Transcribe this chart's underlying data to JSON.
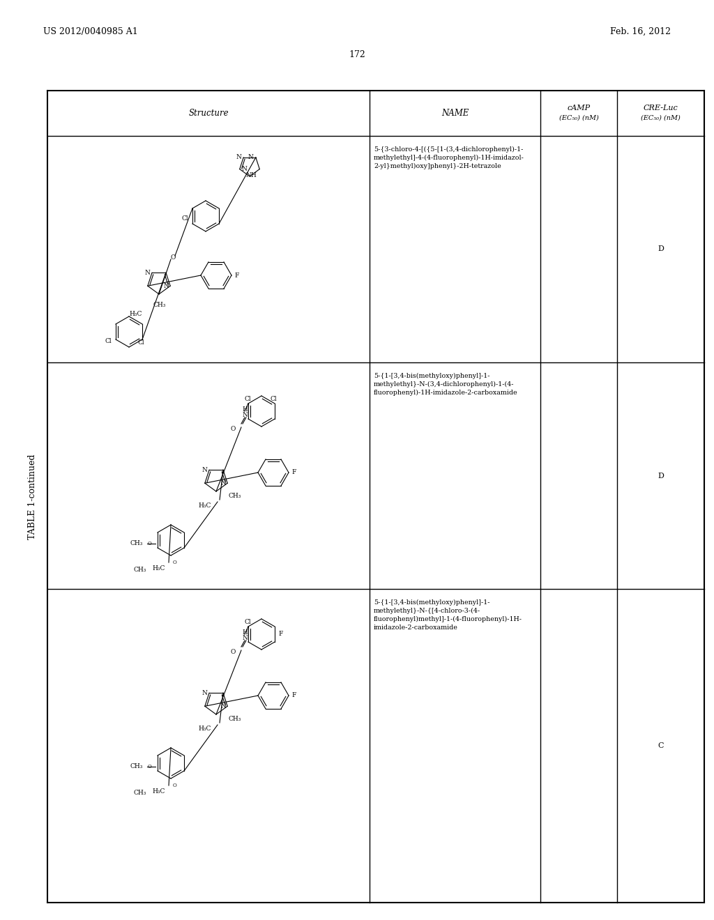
{
  "page_header_left": "US 2012/0040985 A1",
  "page_header_right": "Feb. 16, 2012",
  "page_number": "172",
  "table_title": "TABLE 1-continued",
  "col_structure": "Structure",
  "col_name": "NAME",
  "col_camp": "cAMP",
  "col_camp2": "(EC₅₀) (nM)",
  "col_cre": "CRE-Luc",
  "col_cre2": "(EC₅₀) (nM)",
  "row1_name_lines": [
    "5-{3-chloro-4-[({5-[1-(3,4-dichlorophenyl)-1-",
    "methylethyl]-4-(4-fluorophenyl)-1H-imidazol-",
    "2-yl}methyl)oxy]phenyl}-2H-tetrazole"
  ],
  "row2_name_lines": [
    "5-{1-[3,4-bis(methyloxy)phenyl]-1-",
    "methylethyl}-N-(3,4-dichlorophenyl)-1-(4-",
    "fluorophenyl)-1H-imidazole-2-carboxamide"
  ],
  "row3_name_lines": [
    "5-{1-[3,4-bis(methyloxy)phenyl]-1-",
    "methylethyl}-N-{[4-chloro-3-(4-",
    "fluorophenyl)methyl]-1-(4-fluorophenyl)-1H-",
    "imidazole-2-carboxamide"
  ],
  "row1_cre": "D",
  "row2_cre": "D",
  "row3_cre": "C",
  "bg_color": "#ffffff",
  "line_color": "#000000"
}
